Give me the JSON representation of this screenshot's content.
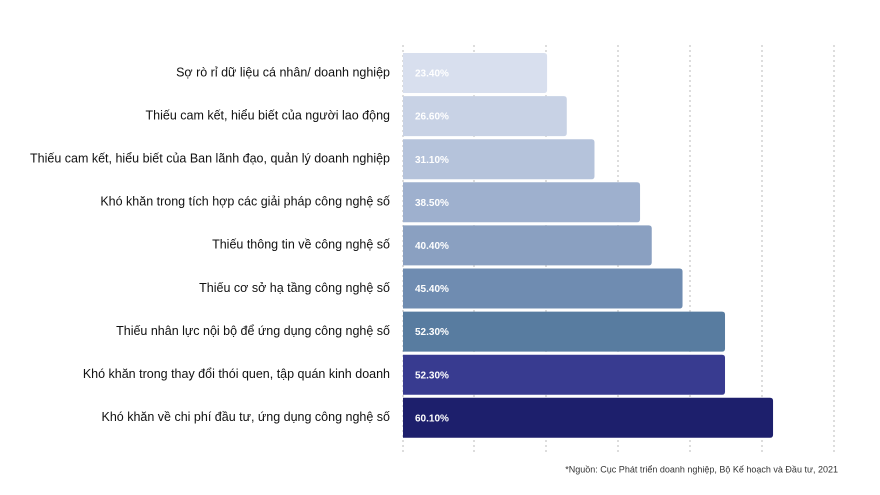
{
  "chart_data": {
    "type": "bar",
    "orientation": "horizontal",
    "categories": [
      "Sợ rò rỉ dữ liệu cá nhân/ doanh nghiệp",
      "Thiếu cam kết, hiểu biết của người lao động",
      "Thiếu cam kết, hiểu biết của Ban lãnh đạo, quản lý doanh nghiệp",
      "Khó khăn trong tích hợp các giải pháp công nghệ số",
      "Thiếu thông tin về công nghệ số",
      "Thiếu cơ sở hạ tầng công nghệ số",
      "Thiếu nhân lực nội bộ để ứng dụng công nghệ số",
      "Khó khăn trong thay đổi thói quen, tập quán kinh doanh",
      "Khó khăn về chi phí đầu tư, ứng dụng công nghệ số"
    ],
    "values": [
      23.4,
      26.6,
      31.1,
      38.5,
      40.4,
      45.4,
      52.3,
      52.3,
      60.1
    ],
    "value_labels": [
      "23.40%",
      "26.60%",
      "31.10%",
      "38.50%",
      "40.40%",
      "45.40%",
      "52.30%",
      "52.30%",
      "60.10%"
    ],
    "colors": [
      "#d8dfee",
      "#c8d2e5",
      "#b5c3db",
      "#9eb0ce",
      "#8aa0c1",
      "#6f8cb1",
      "#587ca0",
      "#383b90",
      "#1d1f6c"
    ],
    "xlim": [
      0,
      70
    ],
    "source": "*Nguồn: Cục Phát triển doanh nghiệp, Bộ Kế hoạch và Đầu tư, 2021"
  }
}
